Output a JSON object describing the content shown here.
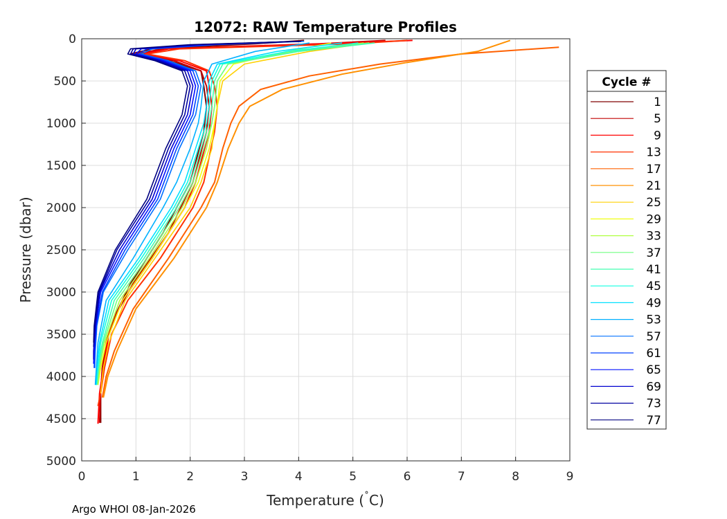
{
  "chart_data": {
    "type": "line",
    "title": "12072: RAW Temperature Profiles",
    "xlabel": "Temperature (",
    "xlabel_degree": "˚",
    "xlabel_unit": "C)",
    "ylabel": "Pressure (dbar)",
    "xlim": [
      0,
      9
    ],
    "ylim": [
      0,
      5000
    ],
    "y_reversed": true,
    "grid": true,
    "x_ticks": [
      "0",
      "1",
      "2",
      "3",
      "4",
      "5",
      "6",
      "7",
      "8",
      "9"
    ],
    "y_ticks": [
      "0",
      "500",
      "1000",
      "1500",
      "2000",
      "2500",
      "3000",
      "3500",
      "4000",
      "4500",
      "5000"
    ],
    "legend": {
      "title": "Cycle #",
      "location": "outside-right",
      "entries": [
        {
          "label": "1",
          "color": "#800000"
        },
        {
          "label": "5",
          "color": "#c00000"
        },
        {
          "label": "9",
          "color": "#ff0000"
        },
        {
          "label": "13",
          "color": "#ff3000"
        },
        {
          "label": "17",
          "color": "#ff6000"
        },
        {
          "label": "21",
          "color": "#ff9000"
        },
        {
          "label": "25",
          "color": "#ffd000"
        },
        {
          "label": "29",
          "color": "#f0ff10"
        },
        {
          "label": "33",
          "color": "#b0ff40"
        },
        {
          "label": "37",
          "color": "#70ff80"
        },
        {
          "label": "41",
          "color": "#40ffb0"
        },
        {
          "label": "45",
          "color": "#10ffe0"
        },
        {
          "label": "49",
          "color": "#00e0ff"
        },
        {
          "label": "53",
          "color": "#00b0ff"
        },
        {
          "label": "57",
          "color": "#0070ff"
        },
        {
          "label": "61",
          "color": "#0040ff"
        },
        {
          "label": "65",
          "color": "#0010ff"
        },
        {
          "label": "69",
          "color": "#0000d0"
        },
        {
          "label": "73",
          "color": "#0000a0"
        },
        {
          "label": "77",
          "color": "#000080"
        }
      ]
    },
    "series": [
      {
        "name": "1",
        "color": "#800000",
        "x": [
          4.1,
          3.2,
          1.3,
          0.9,
          1.6,
          2.2,
          2.25,
          2.3,
          2.25,
          2.0,
          1.5,
          0.9,
          0.6,
          0.45,
          0.38,
          0.35,
          0.35
        ],
        "y": [
          20,
          60,
          120,
          180,
          260,
          380,
          560,
          800,
          1100,
          1700,
          2300,
          2900,
          3300,
          3600,
          3900,
          4200,
          4550
        ]
      },
      {
        "name": "5",
        "color": "#c00000",
        "x": [
          5.6,
          4.4,
          1.5,
          1.0,
          1.7,
          2.2,
          2.3,
          2.35,
          2.3,
          2.05,
          1.6,
          0.95,
          0.6,
          0.45,
          0.38,
          0.35,
          0.33
        ],
        "y": [
          20,
          60,
          120,
          180,
          260,
          380,
          560,
          800,
          1100,
          1700,
          2300,
          2900,
          3300,
          3600,
          3900,
          4200,
          4550
        ]
      },
      {
        "name": "9",
        "color": "#ff0000",
        "x": [
          6.1,
          4.5,
          1.6,
          1.1,
          1.8,
          2.3,
          2.35,
          2.4,
          2.35,
          2.1,
          1.9,
          1.3,
          0.75,
          0.5,
          0.4,
          0.33,
          0.3
        ],
        "y": [
          20,
          60,
          120,
          180,
          260,
          380,
          560,
          800,
          1100,
          1700,
          2000,
          2600,
          3100,
          3500,
          3900,
          4200,
          4560
        ]
      },
      {
        "name": "13",
        "color": "#ff3000",
        "x": [
          6.0,
          5.0,
          1.8,
          1.2,
          1.9,
          2.35,
          2.45,
          2.5,
          2.45,
          2.25,
          2.05,
          1.45,
          0.85,
          0.55,
          0.42,
          0.35,
          0.3
        ],
        "y": [
          20,
          60,
          120,
          180,
          260,
          380,
          560,
          800,
          1100,
          1700,
          2000,
          2600,
          3100,
          3500,
          3900,
          4200,
          4350
        ]
      },
      {
        "name": "17",
        "color": "#ff6000",
        "x": [
          8.8,
          7.0,
          5.5,
          4.2,
          3.3,
          2.9,
          2.75,
          2.6,
          2.45,
          2.2,
          1.6,
          0.95,
          0.6,
          0.45,
          0.38
        ],
        "y": [
          100,
          180,
          300,
          440,
          600,
          800,
          1000,
          1300,
          1700,
          2000,
          2600,
          3200,
          3700,
          4000,
          4250
        ]
      },
      {
        "name": "21",
        "color": "#ff9000",
        "x": [
          7.9,
          7.3,
          6.0,
          4.8,
          3.7,
          3.1,
          2.9,
          2.7,
          2.5,
          2.3,
          1.7,
          1.0,
          0.65,
          0.48,
          0.4
        ],
        "y": [
          20,
          150,
          280,
          420,
          600,
          800,
          1000,
          1300,
          1700,
          2000,
          2600,
          3200,
          3700,
          4000,
          4250
        ]
      },
      {
        "name": "25",
        "color": "#ffd000",
        "x": [
          5.3,
          4.2,
          3.0,
          2.6,
          2.5,
          2.45,
          2.4,
          2.2,
          2.0,
          1.35,
          0.8,
          0.5,
          0.4,
          0.35
        ],
        "y": [
          50,
          150,
          300,
          500,
          800,
          1000,
          1300,
          1700,
          2000,
          2600,
          3100,
          3600,
          3900,
          4200
        ]
      },
      {
        "name": "29",
        "color": "#f0ff10",
        "x": [
          4.6,
          3.8,
          2.8,
          2.55,
          2.5,
          2.45,
          2.35,
          2.15,
          1.9,
          1.3,
          0.75,
          0.45,
          0.35,
          0.3
        ],
        "y": [
          50,
          150,
          300,
          500,
          800,
          1000,
          1300,
          1700,
          2000,
          2600,
          3100,
          3600,
          3900,
          4100
        ]
      },
      {
        "name": "33",
        "color": "#b0ff40",
        "x": [
          5.2,
          3.9,
          2.7,
          2.5,
          2.45,
          2.4,
          2.3,
          2.1,
          1.85,
          1.25,
          0.7,
          0.42,
          0.33,
          0.3
        ],
        "y": [
          50,
          150,
          300,
          500,
          800,
          1000,
          1300,
          1700,
          2000,
          2600,
          3100,
          3600,
          3900,
          4100
        ]
      },
      {
        "name": "37",
        "color": "#70ff80",
        "x": [
          5.3,
          4.0,
          2.7,
          2.5,
          2.45,
          2.4,
          2.25,
          2.05,
          1.8,
          1.2,
          0.65,
          0.4,
          0.32,
          0.28
        ],
        "y": [
          50,
          150,
          300,
          500,
          800,
          1000,
          1300,
          1700,
          2000,
          2600,
          3100,
          3600,
          3900,
          4100
        ]
      },
      {
        "name": "41",
        "color": "#40ffb0",
        "x": [
          5.4,
          4.0,
          2.6,
          2.45,
          2.4,
          2.35,
          2.2,
          2.0,
          1.75,
          1.15,
          0.6,
          0.38,
          0.3,
          0.27
        ],
        "y": [
          50,
          150,
          300,
          500,
          800,
          1000,
          1300,
          1700,
          2000,
          2600,
          3100,
          3600,
          3900,
          4100
        ]
      },
      {
        "name": "45",
        "color": "#10ffe0",
        "x": [
          5.1,
          3.8,
          2.55,
          2.4,
          2.35,
          2.3,
          2.15,
          1.95,
          1.7,
          1.1,
          0.55,
          0.35,
          0.3,
          0.27
        ],
        "y": [
          50,
          150,
          300,
          500,
          800,
          1000,
          1300,
          1700,
          2000,
          2600,
          3100,
          3600,
          3900,
          4100
        ]
      },
      {
        "name": "49",
        "color": "#00e0ff",
        "x": [
          4.8,
          3.6,
          2.5,
          2.35,
          2.3,
          2.25,
          2.1,
          1.9,
          1.65,
          1.05,
          0.5,
          0.33,
          0.28,
          0.26
        ],
        "y": [
          50,
          150,
          300,
          500,
          800,
          1000,
          1300,
          1700,
          2000,
          2600,
          3100,
          3600,
          3900,
          4100
        ]
      },
      {
        "name": "53",
        "color": "#00b0ff",
        "x": [
          4.2,
          3.2,
          2.4,
          2.25,
          2.2,
          2.15,
          2.0,
          1.75,
          1.5,
          0.95,
          0.45,
          0.3,
          0.27,
          0.25
        ],
        "y": [
          50,
          150,
          300,
          500,
          800,
          1000,
          1300,
          1700,
          2000,
          2600,
          3100,
          3600,
          3900,
          4100
        ]
      },
      {
        "name": "57",
        "color": "#0070ff",
        "x": [
          4.1,
          2.5,
          1.3,
          1.1,
          1.6,
          2.1,
          2.2,
          2.1,
          1.8,
          1.45,
          0.85,
          0.4,
          0.28,
          0.25,
          0.24
        ],
        "y": [
          30,
          70,
          120,
          180,
          260,
          380,
          560,
          900,
          1300,
          1900,
          2500,
          3000,
          3400,
          3700,
          3900
        ]
      },
      {
        "name": "61",
        "color": "#0040ff",
        "x": [
          4.0,
          2.4,
          1.2,
          1.05,
          1.55,
          2.05,
          2.15,
          2.05,
          1.75,
          1.4,
          0.8,
          0.38,
          0.27,
          0.24,
          0.23
        ],
        "y": [
          30,
          70,
          120,
          180,
          260,
          380,
          560,
          900,
          1300,
          1900,
          2500,
          3000,
          3400,
          3700,
          3900
        ]
      },
      {
        "name": "65",
        "color": "#0010ff",
        "x": [
          4.05,
          2.3,
          1.1,
          1.0,
          1.5,
          2.0,
          2.1,
          2.0,
          1.7,
          1.35,
          0.75,
          0.35,
          0.26,
          0.23,
          0.22
        ],
        "y": [
          30,
          70,
          120,
          180,
          260,
          380,
          560,
          900,
          1300,
          1900,
          2500,
          3000,
          3400,
          3700,
          3850
        ]
      },
      {
        "name": "69",
        "color": "#0000d0",
        "x": [
          4.0,
          2.2,
          1.0,
          0.95,
          1.45,
          1.95,
          2.05,
          1.95,
          1.65,
          1.3,
          0.7,
          0.33,
          0.25,
          0.22,
          0.22
        ],
        "y": [
          30,
          70,
          120,
          180,
          260,
          380,
          560,
          900,
          1300,
          1900,
          2500,
          3000,
          3400,
          3700,
          3800
        ]
      },
      {
        "name": "73",
        "color": "#0000a0",
        "x": [
          4.05,
          2.1,
          0.95,
          0.9,
          1.4,
          1.9,
          2.0,
          1.9,
          1.6,
          1.25,
          0.65,
          0.32,
          0.24,
          0.22
        ],
        "y": [
          30,
          70,
          120,
          180,
          260,
          380,
          560,
          900,
          1300,
          1900,
          2500,
          3000,
          3400,
          3650
        ]
      },
      {
        "name": "77",
        "color": "#000080",
        "x": [
          4.05,
          2.0,
          0.9,
          0.85,
          1.35,
          1.85,
          1.95,
          1.85,
          1.55,
          1.2,
          0.62,
          0.3,
          0.23,
          0.22
        ],
        "y": [
          30,
          70,
          120,
          180,
          260,
          380,
          560,
          900,
          1300,
          1900,
          2500,
          3000,
          3400,
          3600
        ]
      }
    ]
  },
  "footer": {
    "text": "Argo WHOI 08-Jan-2026"
  }
}
